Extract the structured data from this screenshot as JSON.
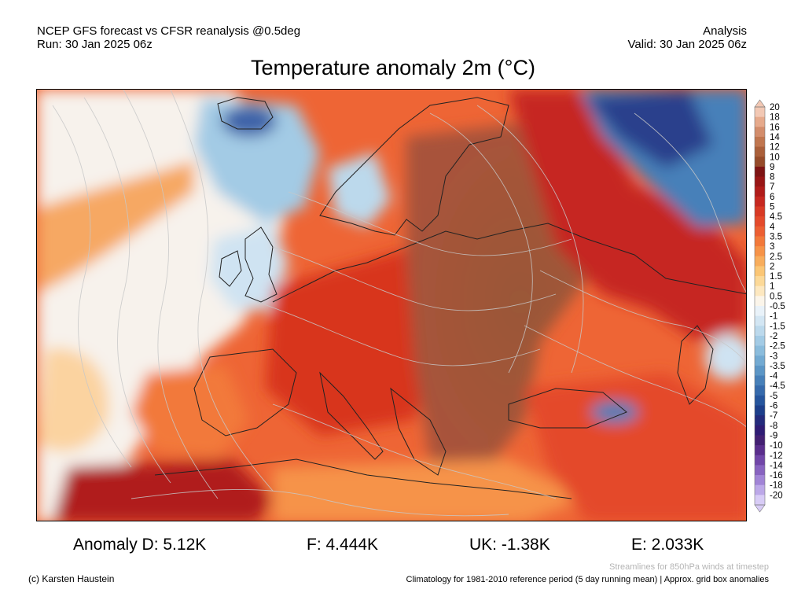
{
  "header": {
    "left_line1": "NCEP GFS forecast vs CFSR reanalysis @0.5deg",
    "left_line2": "Run: 30 Jan 2025 06z",
    "right_line1": "Analysis",
    "right_line2": "Valid: 30 Jan 2025 06z"
  },
  "title": "Temperature anomaly 2m (°C)",
  "colorbar": {
    "labels": [
      "20",
      "18",
      "16",
      "14",
      "12",
      "10",
      "9",
      "8",
      "7",
      "6",
      "5",
      "4.5",
      "4",
      "3.5",
      "3",
      "2.5",
      "2",
      "1.5",
      "1",
      "0.5",
      "-0.5",
      "-1",
      "-1.5",
      "-2",
      "-2.5",
      "-3",
      "-3.5",
      "-4",
      "-4.5",
      "-5",
      "-6",
      "-7",
      "-8",
      "-9",
      "-10",
      "-12",
      "-14",
      "-16",
      "-18",
      "-20"
    ],
    "colors": [
      "#f2c8b4",
      "#e6aa8c",
      "#d38d6c",
      "#c0764f",
      "#aa5f3a",
      "#964b2a",
      "#7e1414",
      "#981616",
      "#b01c1a",
      "#c62820",
      "#d83a25",
      "#e44a2b",
      "#ec5f32",
      "#f2793a",
      "#f69348",
      "#f8ad5c",
      "#fbc675",
      "#fcd998",
      "#fde8c0",
      "#fbf5ea",
      "#e9f2f9",
      "#d3e6f3",
      "#bcd9ec",
      "#a3cbe5",
      "#8bbcdc",
      "#73aad2",
      "#5c96c6",
      "#4780b9",
      "#366aac",
      "#26559d",
      "#1d3f8b",
      "#242b7c",
      "#2f1c74",
      "#432072",
      "#5a2e8c",
      "#7146a8",
      "#8863c0",
      "#a184d6",
      "#bca8e8",
      "#d8ccf6"
    ]
  },
  "stats": {
    "d": "Anomaly D: 5.12K",
    "f": "F: 4.444K",
    "uk": "UK: -1.38K",
    "e": "E: 2.033K"
  },
  "footer": {
    "copyright": "(c) Karsten Haustein",
    "streamline_note": "Streamlines for 850hPa winds at timestep",
    "climatology_note": "Climatology for 1981-2010 reference period (5 day running mean) | Approx. grid box anomalies"
  }
}
